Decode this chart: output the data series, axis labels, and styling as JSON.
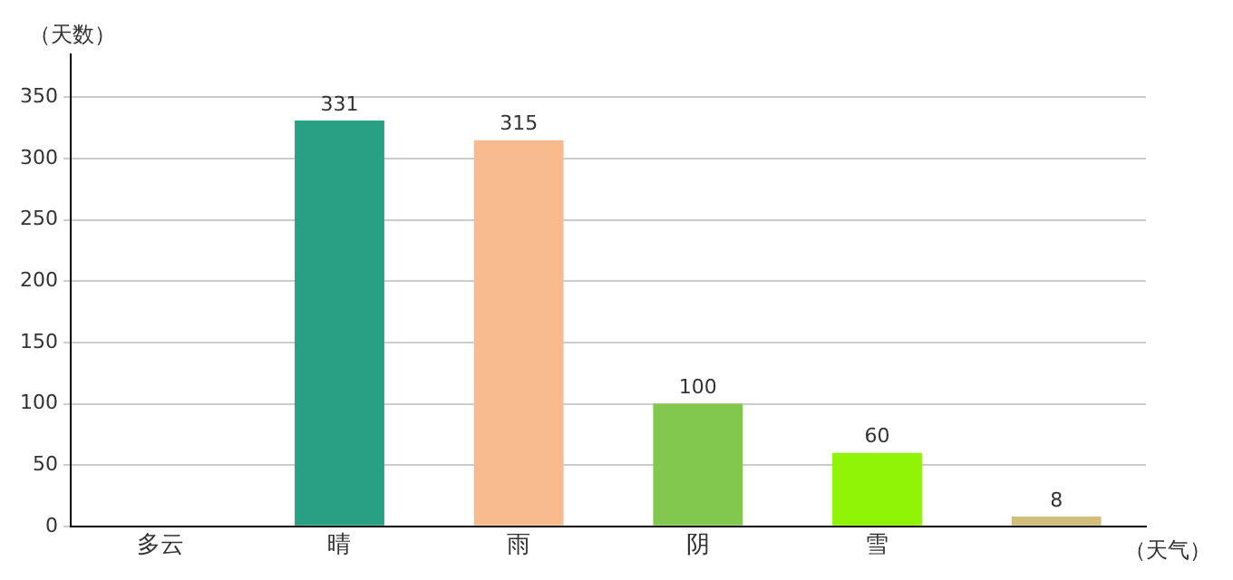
{
  "chart_data": {
    "type": "bar",
    "xlabel": "（天气）",
    "ylabel": "（天数）",
    "categories": [
      "多云",
      "晴",
      "雨",
      "阴",
      "雪",
      null
    ],
    "values": [
      null,
      331,
      315,
      100,
      60,
      8
    ],
    "colors": [
      "#4f3a80",
      "#27a083",
      "#f8bb8e",
      "#82c84e",
      "#8ef304",
      "#d2bd7a"
    ],
    "ylim": [
      0,
      385
    ],
    "yticks": [
      0,
      50,
      100,
      150,
      200,
      250,
      300,
      350
    ],
    "grid": "y",
    "data_labels": true,
    "legend": false
  }
}
